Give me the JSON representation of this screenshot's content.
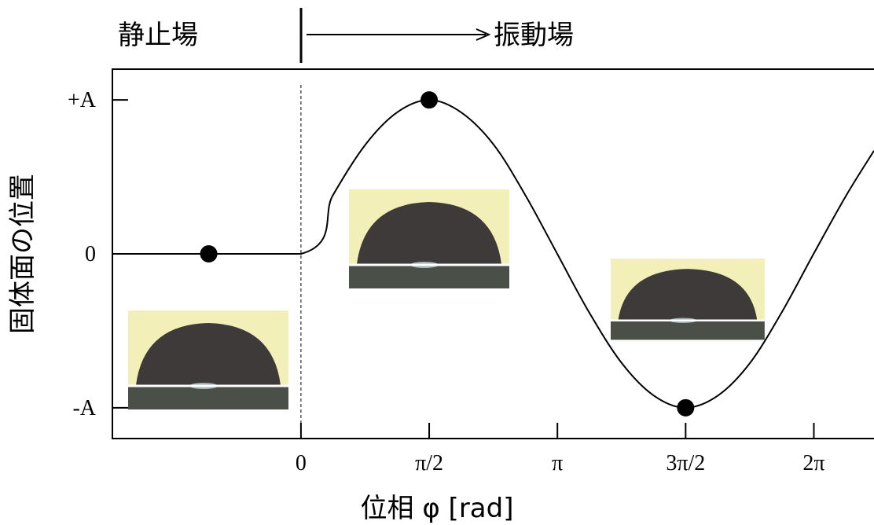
{
  "chart_data": {
    "type": "line",
    "header_left": "静止場",
    "header_right": "振動場",
    "xlabel": "位相 φ [rad]",
    "ylabel": "固体面の位置",
    "xlim": [
      -2.31,
      7.02
    ],
    "ylim": [
      -1.2,
      1.2
    ],
    "xticks": [
      0,
      {
        "value": 1.5708,
        "label": "π/2"
      },
      {
        "value": 3.1416,
        "label": "π"
      },
      {
        "value": 4.7124,
        "label": "3π/2"
      },
      {
        "value": 6.2832,
        "label": "2π"
      }
    ],
    "yticks": [
      {
        "value": 1,
        "label": "+A"
      },
      0,
      {
        "value": -1,
        "label": "-A"
      }
    ],
    "series": [
      {
        "type": "line",
        "color": "#000000",
        "x": [
          -2.31,
          0,
          0.39,
          0.79,
          1.18,
          1.57,
          1.96,
          2.36,
          2.75,
          3.14,
          3.53,
          3.93,
          4.32,
          4.71,
          5.11,
          5.5,
          5.89,
          6.28,
          6.68,
          7.02
        ],
        "values": [
          0,
          0,
          0.38,
          0.71,
          0.92,
          1,
          0.92,
          0.71,
          0.38,
          0,
          -0.38,
          -0.71,
          -0.92,
          -1,
          -0.92,
          -0.71,
          -0.38,
          0,
          0.38,
          0.67
        ]
      },
      {
        "type": "scatter",
        "color": "#000000",
        "x": [
          -1.13,
          1.5708,
          4.7124
        ],
        "values": [
          0,
          1,
          -1
        ]
      }
    ]
  }
}
